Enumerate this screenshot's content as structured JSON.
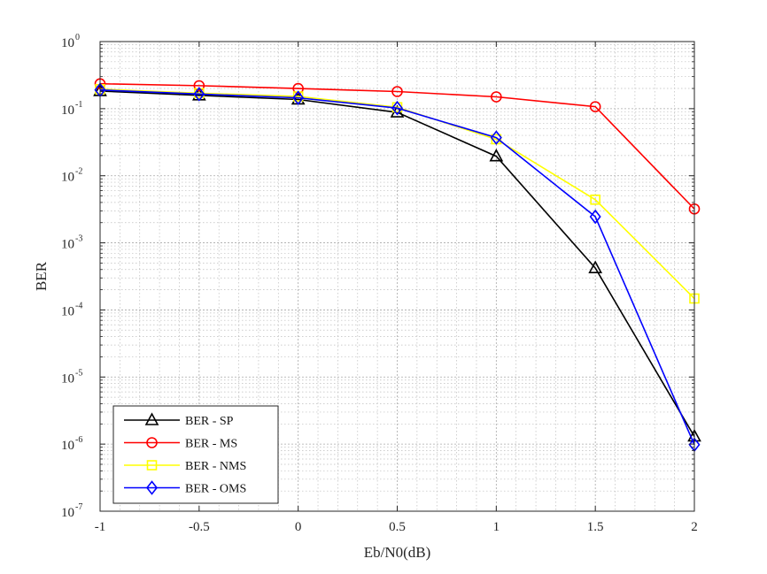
{
  "chart_data": {
    "type": "line",
    "title": "",
    "xlabel": "Eb/N0(dB)",
    "ylabel": "BER",
    "yscale": "log",
    "xlim": [
      -1,
      2
    ],
    "ylim": [
      1e-07,
      1
    ],
    "x_ticks": [
      -1,
      -0.5,
      0,
      0.5,
      1,
      1.5,
      2
    ],
    "x_tick_labels": [
      "-1",
      "-0.5",
      "0",
      "0.5",
      "1",
      "1.5",
      "2"
    ],
    "y_ticks": [
      {
        "value": 1.0,
        "base": "10",
        "exp": "0"
      },
      {
        "value": 0.1,
        "base": "10",
        "exp": "-1"
      },
      {
        "value": 0.01,
        "base": "10",
        "exp": "-2"
      },
      {
        "value": 0.001,
        "base": "10",
        "exp": "-3"
      },
      {
        "value": 0.0001,
        "base": "10",
        "exp": "-4"
      },
      {
        "value": 1e-05,
        "base": "10",
        "exp": "-5"
      },
      {
        "value": 1e-06,
        "base": "10",
        "exp": "-6"
      },
      {
        "value": 1e-07,
        "base": "10",
        "exp": "-7"
      }
    ],
    "grid": true,
    "minor_grid": true,
    "legend_position": "bottom-left",
    "x": [
      -1,
      -0.5,
      0,
      0.5,
      1,
      1.5,
      2
    ],
    "series": [
      {
        "name": "BER - SP",
        "color": "#000000",
        "marker": "triangle",
        "values": [
          0.183,
          0.158,
          0.137,
          0.088,
          0.0195,
          0.00042,
          1.3e-06
        ]
      },
      {
        "name": "BER - MS",
        "color": "#ff0000",
        "marker": "circle",
        "values": [
          0.235,
          0.22,
          0.2,
          0.18,
          0.15,
          0.107,
          0.0032
        ]
      },
      {
        "name": "BER - NMS",
        "color": "#ffff00",
        "marker": "square",
        "values": [
          0.195,
          0.17,
          0.152,
          0.105,
          0.035,
          0.0044,
          0.000148
        ]
      },
      {
        "name": "BER - OMS",
        "color": "#0000ff",
        "marker": "diamond",
        "values": [
          0.19,
          0.165,
          0.145,
          0.102,
          0.037,
          0.00245,
          9.8e-07
        ]
      }
    ]
  }
}
